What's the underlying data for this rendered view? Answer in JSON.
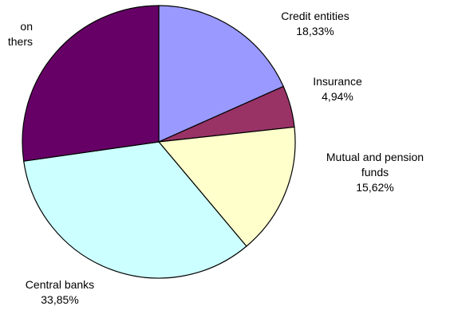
{
  "chart_data": {
    "type": "pie",
    "slices": [
      {
        "label": [
          "Credit entities"
        ],
        "value": 18.33,
        "value_label": "18,33%",
        "color": "#9999ff"
      },
      {
        "label": [
          "Insurance"
        ],
        "value": 4.94,
        "value_label": "4,94%",
        "color": "#993366"
      },
      {
        "label": [
          "Mutual and pension",
          "funds"
        ],
        "value": 15.62,
        "value_label": "15,62%",
        "color": "#ffffcc"
      },
      {
        "label": [
          "Central banks"
        ],
        "value": 33.85,
        "value_label": "33,85%",
        "color": "#ccffff"
      },
      {
        "label": [
          "on",
          "thers"
        ],
        "value": 27.26,
        "value_label": "",
        "color": "#660066"
      }
    ],
    "start": "top",
    "direction": "clockwise"
  }
}
